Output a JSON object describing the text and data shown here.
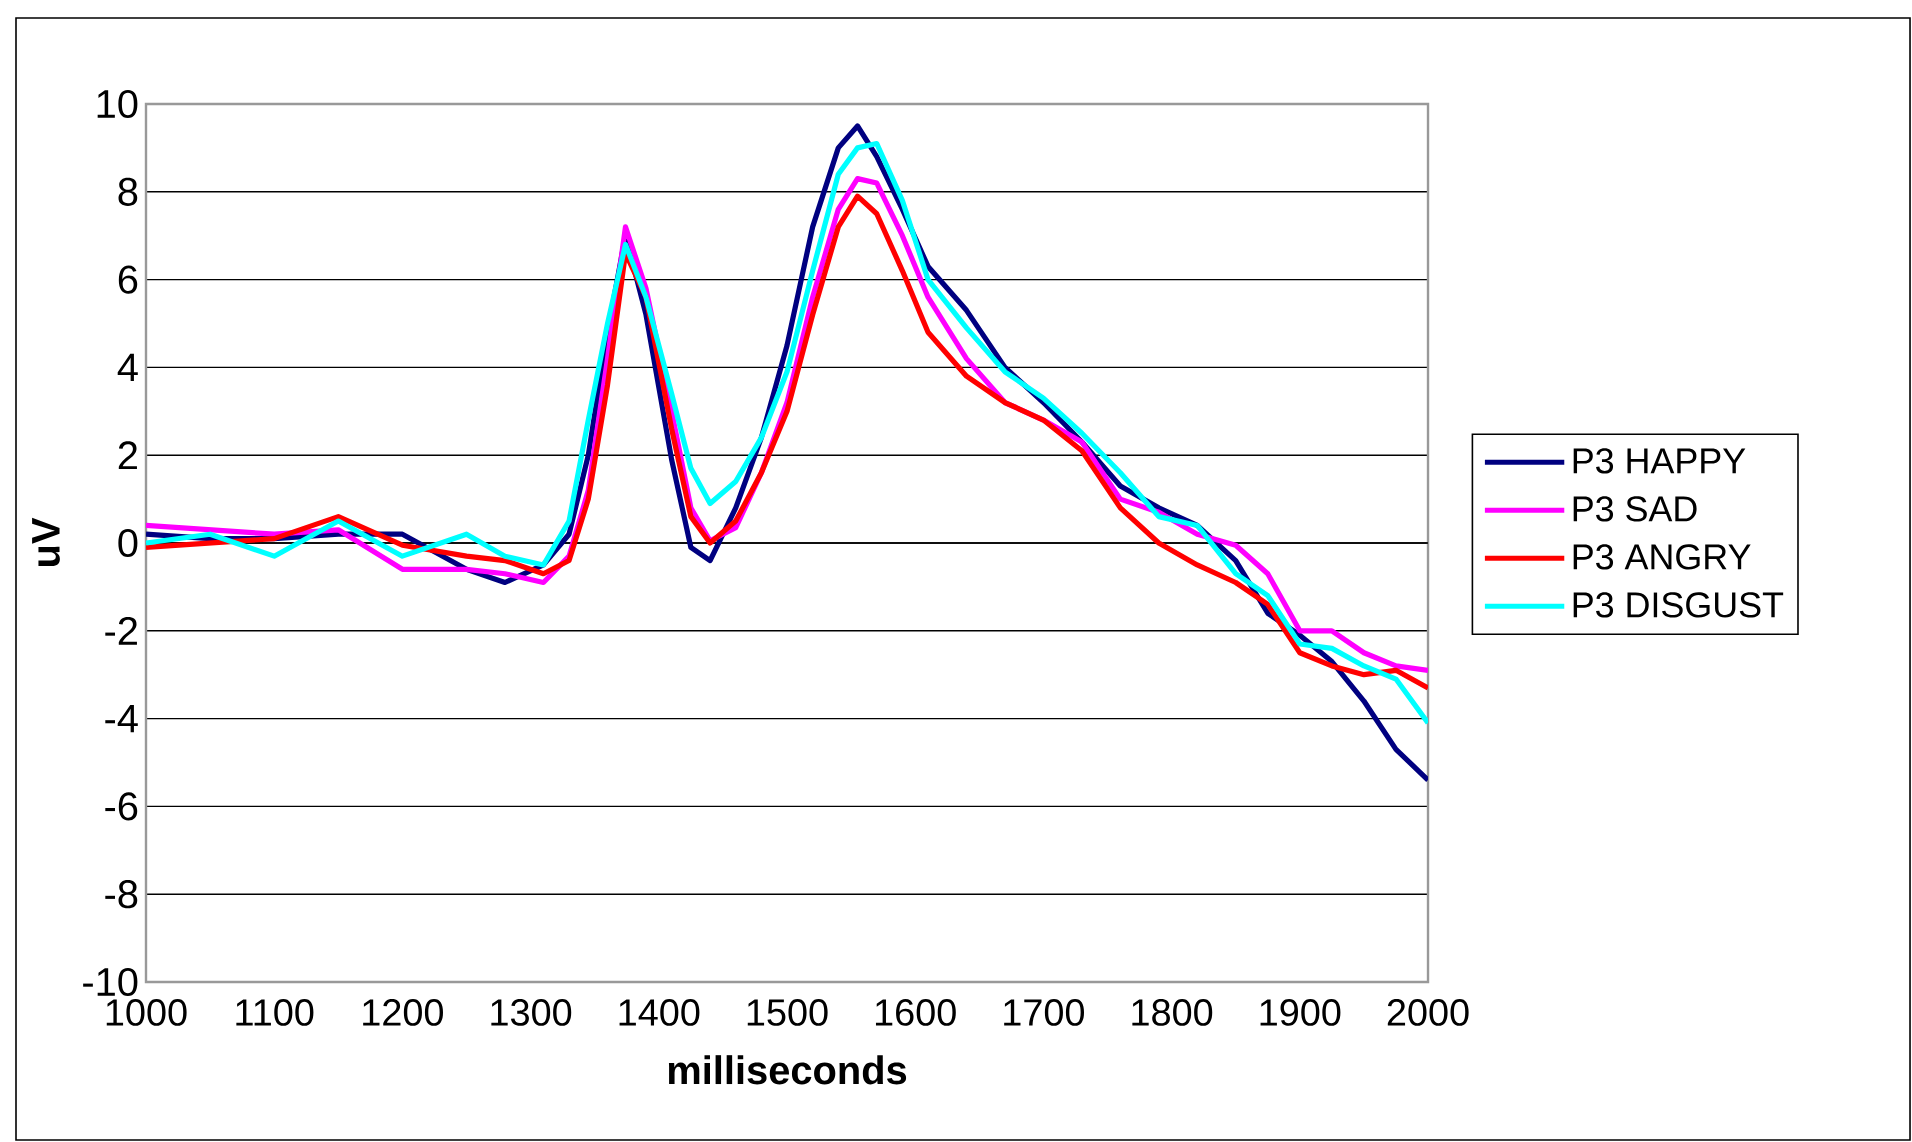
{
  "chart_data": {
    "type": "line",
    "xlabel": "milliseconds",
    "ylabel": "uV",
    "x": [
      1000,
      1050,
      1100,
      1150,
      1200,
      1250,
      1280,
      1310,
      1330,
      1345,
      1360,
      1374,
      1390,
      1410,
      1425,
      1440,
      1460,
      1480,
      1500,
      1520,
      1540,
      1555,
      1570,
      1590,
      1610,
      1640,
      1670,
      1700,
      1730,
      1760,
      1790,
      1820,
      1850,
      1875,
      1900,
      1925,
      1950,
      1975,
      2000
    ],
    "series": [
      {
        "name": "P3 HAPPY",
        "color": "#000080",
        "values": [
          0.2,
          0.1,
          0.1,
          0.2,
          0.2,
          -0.6,
          -0.9,
          -0.5,
          0.2,
          2.0,
          4.8,
          7.0,
          5.2,
          1.9,
          -0.1,
          -0.4,
          0.8,
          2.4,
          4.5,
          7.2,
          9.0,
          9.5,
          8.8,
          7.6,
          6.3,
          5.3,
          4.0,
          3.2,
          2.3,
          1.3,
          0.8,
          0.4,
          -0.4,
          -1.6,
          -2.1,
          -2.7,
          -3.6,
          -4.7,
          -5.4
        ]
      },
      {
        "name": "P3 SAD",
        "color": "#ff00ff",
        "values": [
          0.4,
          0.3,
          0.2,
          0.3,
          -0.6,
          -0.6,
          -0.7,
          -0.9,
          -0.3,
          1.2,
          4.2,
          7.2,
          5.8,
          3.0,
          0.8,
          0.05,
          0.35,
          1.6,
          3.2,
          5.6,
          7.6,
          8.3,
          8.2,
          7.0,
          5.6,
          4.2,
          3.2,
          2.8,
          2.3,
          1.0,
          0.7,
          0.2,
          -0.05,
          -0.7,
          -2.0,
          -2.0,
          -2.5,
          -2.8,
          -2.9
        ]
      },
      {
        "name": "P3 ANGRY",
        "color": "#ff0000",
        "values": [
          -0.1,
          0.0,
          0.1,
          0.6,
          -0.05,
          -0.3,
          -0.4,
          -0.7,
          -0.4,
          1.0,
          3.6,
          6.6,
          5.6,
          2.6,
          0.6,
          0.0,
          0.5,
          1.6,
          3.0,
          5.2,
          7.2,
          7.9,
          7.5,
          6.2,
          4.8,
          3.8,
          3.2,
          2.8,
          2.1,
          0.8,
          0.0,
          -0.5,
          -0.9,
          -1.4,
          -2.5,
          -2.8,
          -3.0,
          -2.9,
          -3.3
        ]
      },
      {
        "name": "P3 DISGUST",
        "color": "#00ffff",
        "values": [
          0.0,
          0.2,
          -0.3,
          0.5,
          -0.3,
          0.2,
          -0.3,
          -0.5,
          0.5,
          2.8,
          5.0,
          6.8,
          5.6,
          3.4,
          1.7,
          0.9,
          1.4,
          2.4,
          3.9,
          6.2,
          8.4,
          9.0,
          9.1,
          7.8,
          6.0,
          4.9,
          3.9,
          3.3,
          2.5,
          1.6,
          0.6,
          0.4,
          -0.7,
          -1.2,
          -2.3,
          -2.4,
          -2.8,
          -3.1,
          -4.1
        ]
      }
    ],
    "xlim": [
      1000,
      2000
    ],
    "ylim": [
      -10,
      10
    ],
    "xticks": [
      1000,
      1100,
      1200,
      1300,
      1400,
      1500,
      1600,
      1700,
      1800,
      1900,
      2000
    ],
    "yticks": [
      -10,
      -8,
      -6,
      -4,
      -2,
      0,
      2,
      4,
      6,
      8,
      10
    ],
    "grid": "y",
    "legend": "right",
    "marker": "none",
    "line_style": "solid"
  }
}
